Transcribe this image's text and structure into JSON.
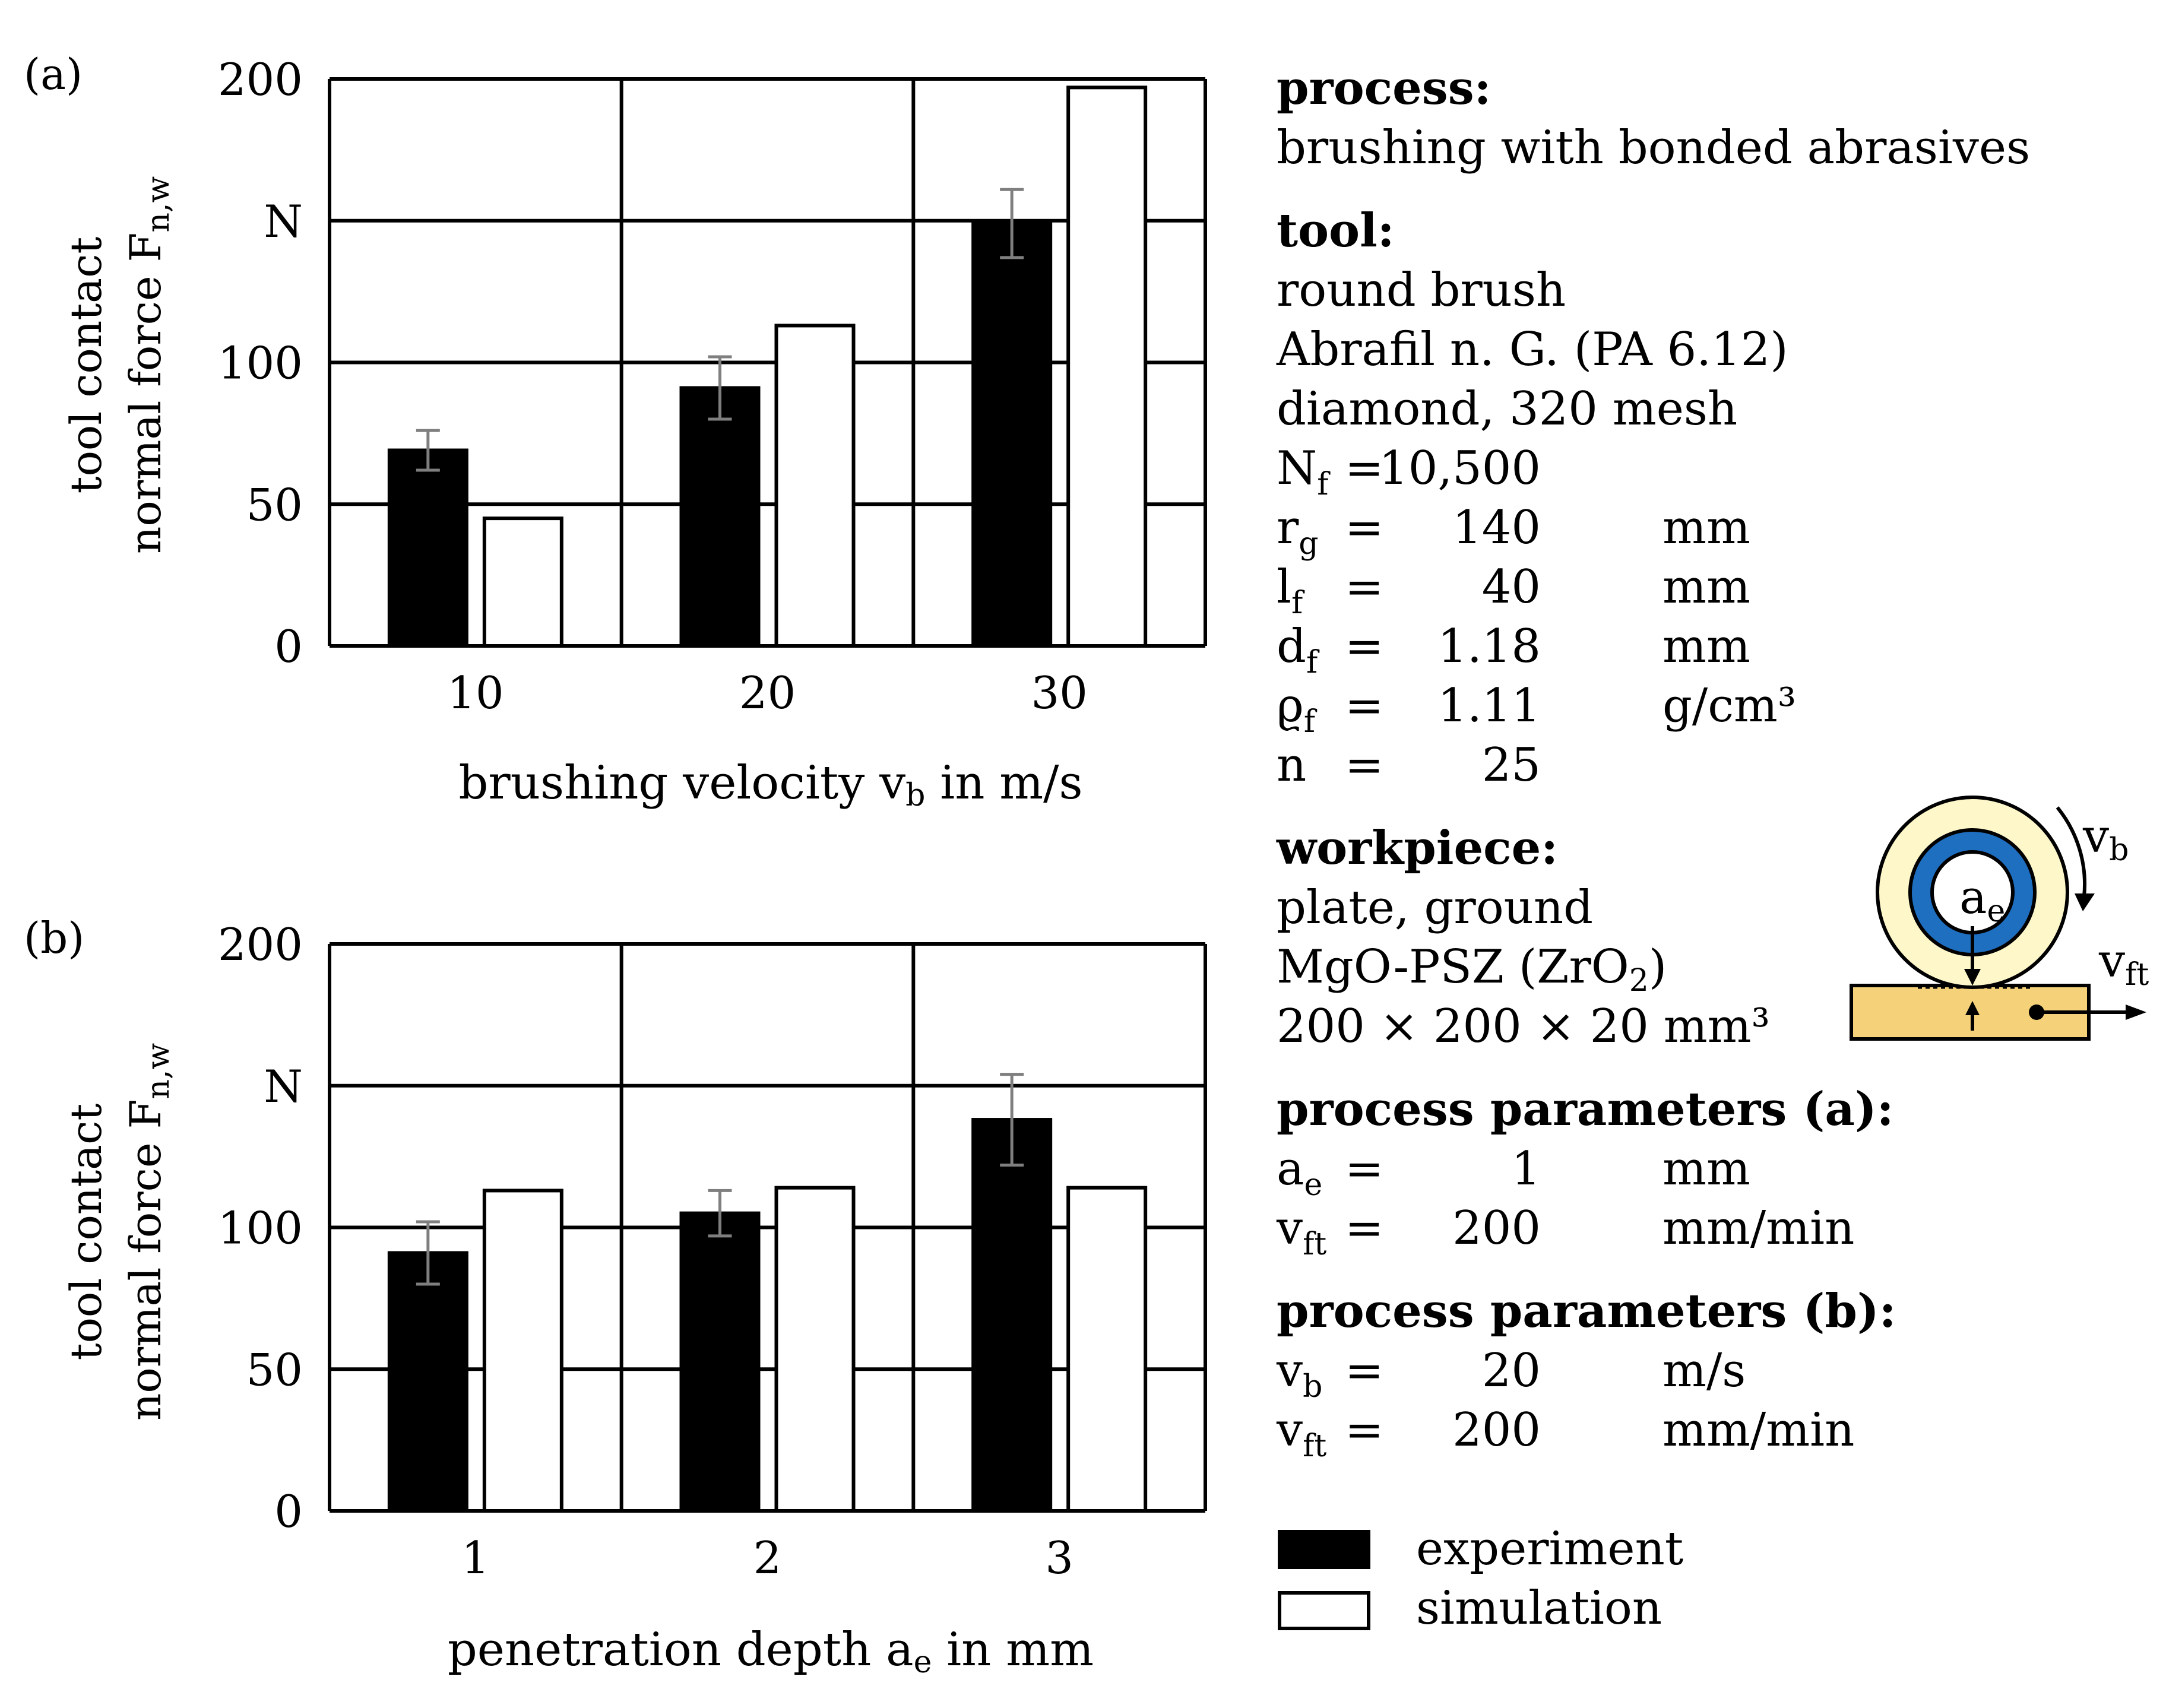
{
  "chart_data": [
    {
      "type": "bar",
      "panel_label": "(a)",
      "categories": [
        "10",
        "20",
        "30"
      ],
      "series": [
        {
          "name": "experiment",
          "values": [
            69,
            91,
            149
          ]
        },
        {
          "name": "simulation",
          "values": [
            45,
            113,
            197
          ]
        }
      ],
      "error_bars": {
        "experiment": [
          7,
          11,
          12
        ]
      },
      "ylim": [
        0,
        200
      ],
      "yticks": [
        "0",
        "50",
        "100",
        "N",
        "200"
      ],
      "ylabel_line1": "tool contact",
      "ylabel_line2_main": "normal force F",
      "ylabel_line2_sub": "n,w",
      "xlabel_main": "brushing velocity v",
      "xlabel_sub": "b",
      "xlabel_tail": " in m/s",
      "grid": true
    },
    {
      "type": "bar",
      "panel_label": "(b)",
      "categories": [
        "1",
        "2",
        "3"
      ],
      "series": [
        {
          "name": "experiment",
          "values": [
            91,
            105,
            138
          ]
        },
        {
          "name": "simulation",
          "values": [
            113,
            114,
            114
          ]
        }
      ],
      "error_bars": {
        "experiment": [
          11,
          8,
          16
        ]
      },
      "ylim": [
        0,
        200
      ],
      "yticks": [
        "0",
        "50",
        "100",
        "N",
        "200"
      ],
      "ylabel_line1": "tool contact",
      "ylabel_line2_main": "normal force F",
      "ylabel_line2_sub": "n,w",
      "xlabel_main": "penetration depth a",
      "xlabel_sub": "e",
      "xlabel_tail": " in mm",
      "grid": true
    }
  ],
  "colors": {
    "experiment": "#000000",
    "simulation": "#ffffff",
    "error_bar": "#7f7f7f",
    "brush_outer": "#fdf7c9",
    "brush_inner": "#1f6fc1",
    "workpiece": "#f5d27a"
  },
  "info": {
    "process_title": "process:",
    "process_text": "brushing with bonded abrasives",
    "tool_title": "tool:",
    "tool_lines": [
      "round brush",
      "Abrafil n. G. (PA 6.12)",
      "diamond, 320 mesh"
    ],
    "params": [
      {
        "sym": "N",
        "sub": "f",
        "eq": "=",
        "val": "10,500",
        "unit": ""
      },
      {
        "sym": "r",
        "sub": "g",
        "eq": "=",
        "val": "140",
        "unit": "mm"
      },
      {
        "sym": "l",
        "sub": "f",
        "eq": "=",
        "val": "40",
        "unit": "mm"
      },
      {
        "sym": "d",
        "sub": "f",
        "eq": "=",
        "val": "1.18",
        "unit": "mm"
      },
      {
        "sym": "ϱ",
        "sub": "f",
        "eq": "=",
        "val": "1.11",
        "unit": "g/cm³"
      },
      {
        "sym": "n",
        "sub": "",
        "eq": "=",
        "val": "25",
        "unit": ""
      }
    ],
    "workpiece_title": "workpiece:",
    "workpiece_line1": "plate, ground",
    "workpiece_line2_a": "MgO-PSZ (ZrO",
    "workpiece_line2_sub": "2",
    "workpiece_line2_b": ")",
    "workpiece_line3": "200 × 200 × 20 mm³",
    "pp_a_title": "process parameters (a):",
    "pp_a": [
      {
        "sym": "a",
        "sub": "e",
        "eq": "=",
        "val": "1",
        "unit": "mm"
      },
      {
        "sym": "v",
        "sub": "ft",
        "eq": "=",
        "val": "200",
        "unit": "mm/min"
      }
    ],
    "pp_b_title": "process parameters (b):",
    "pp_b": [
      {
        "sym": "v",
        "sub": "b",
        "eq": "=",
        "val": "20",
        "unit": "m/s"
      },
      {
        "sym": "v",
        "sub": "ft",
        "eq": "=",
        "val": "200",
        "unit": "mm/min"
      }
    ]
  },
  "schematic": {
    "vb_main": "v",
    "vb_sub": "b",
    "ae_main": "a",
    "ae_sub": "e",
    "vft_main": "v",
    "vft_sub": "ft"
  },
  "legend": [
    {
      "label": "experiment",
      "color": "#000000"
    },
    {
      "label": "simulation",
      "color": "#ffffff"
    }
  ]
}
